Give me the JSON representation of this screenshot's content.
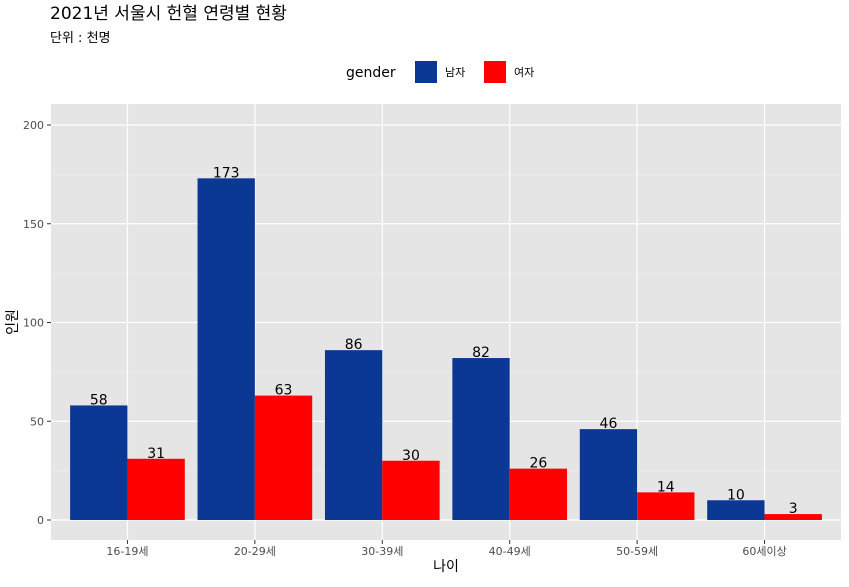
{
  "chart_data": {
    "type": "bar",
    "title": "2021년 서울시 헌혈 연령별 현황",
    "subtitle": "단위 : 천명",
    "xlabel": "나이",
    "ylabel": "인원",
    "legend": {
      "title": "gender",
      "position": "top"
    },
    "categories": [
      "16-19세",
      "20-29세",
      "30-39세",
      "40-49세",
      "50-59세",
      "60세이상"
    ],
    "series": [
      {
        "name": "남자",
        "color": "#0b3894",
        "values": [
          58,
          173,
          86,
          82,
          46,
          10
        ]
      },
      {
        "name": "여자",
        "color": "#ff0000",
        "values": [
          31,
          63,
          30,
          26,
          14,
          3
        ]
      }
    ],
    "ylim": [
      -10,
      208
    ],
    "yticks": [
      0,
      50,
      100,
      150,
      200
    ],
    "grid": true,
    "panel_color": "#e5e5e5"
  }
}
